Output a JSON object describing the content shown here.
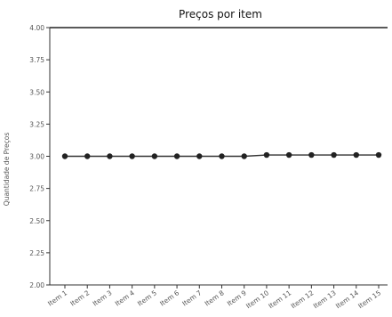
{
  "chart_data": {
    "type": "line",
    "title": "Preços por item",
    "xlabel": "",
    "ylabel": "Quantidade de Preços",
    "categories": [
      "Item 1",
      "Item 2",
      "Item 3",
      "Item 4",
      "Item 5",
      "Item 6",
      "Item 7",
      "Item 8",
      "Item 9",
      "Item 10",
      "Item 11",
      "Item 12",
      "Item 13",
      "Item 14",
      "Item 15"
    ],
    "series": [
      {
        "values": [
          3.0,
          3.0,
          3.0,
          3.0,
          3.0,
          3.0,
          3.0,
          3.0,
          3.0,
          3.01,
          3.01,
          3.01,
          3.01,
          3.01,
          3.01
        ]
      }
    ],
    "ylim": [
      2.0,
      4.0
    ],
    "yticks": [
      "2.00",
      "2.25",
      "2.50",
      "2.75",
      "3.00",
      "3.25",
      "3.50",
      "3.75",
      "4.00"
    ],
    "grid": false,
    "legend": "none",
    "colors": {
      "line": "#333333",
      "marker": "#222222",
      "axis": "#333333",
      "text": "#555555"
    }
  }
}
